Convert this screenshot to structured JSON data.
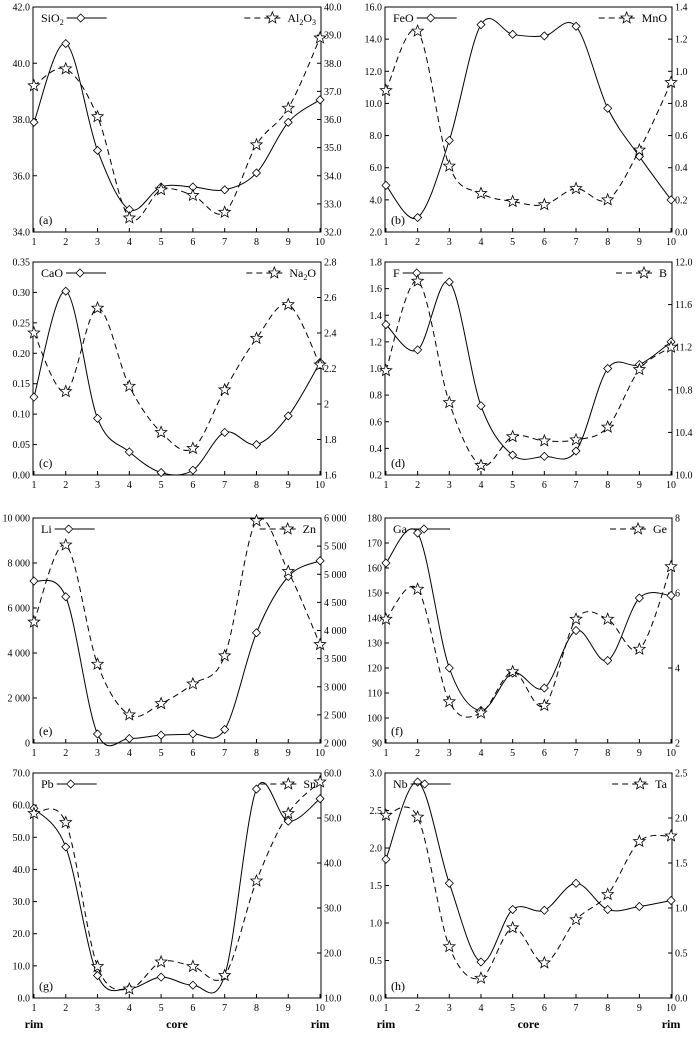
{
  "x_ticks": [
    "1",
    "2",
    "3",
    "4",
    "5",
    "6",
    "7",
    "8",
    "9",
    "10"
  ],
  "bottom_words": {
    "left": "rim",
    "center": "core",
    "right": "rim"
  },
  "chart_data": [
    {
      "type": "line",
      "panel_label": "(a)",
      "left_axis": {
        "ticks": [
          "34.0",
          "36.0",
          "38.0",
          "40.0",
          "42.0"
        ],
        "ylim": [
          34.0,
          42.0
        ]
      },
      "right_axis": {
        "ticks": [
          "32.0",
          "33.0",
          "34.0",
          "35.0",
          "36.0",
          "37.0",
          "38.0",
          "39.0",
          "40.0"
        ],
        "ylim": [
          32.0,
          40.0
        ]
      },
      "series": [
        {
          "name": "SiO2",
          "name_base": "SiO",
          "name_sub": "2",
          "axis": "left",
          "marker": "diamond",
          "style": "solid",
          "x": [
            1,
            2,
            3,
            4,
            5,
            6,
            7,
            8,
            9,
            10
          ],
          "values": [
            37.9,
            40.7,
            36.9,
            34.8,
            35.6,
            35.6,
            35.5,
            36.1,
            37.9,
            38.7
          ]
        },
        {
          "name": "Al2O3",
          "name_base": "Al",
          "name_sub": "2",
          "name_base2": "O",
          "name_sub2": "3",
          "axis": "right",
          "marker": "star",
          "style": "dashed",
          "x": [
            1,
            2,
            3,
            4,
            5,
            6,
            7,
            8,
            9,
            10
          ],
          "values": [
            37.2,
            37.8,
            36.1,
            32.5,
            33.5,
            33.3,
            32.7,
            35.1,
            36.4,
            38.9
          ]
        }
      ]
    },
    {
      "type": "line",
      "panel_label": "(b)",
      "left_axis": {
        "ticks": [
          "2.0",
          "4.0",
          "6.0",
          "8.0",
          "10.0",
          "12.0",
          "14.0",
          "16.0"
        ],
        "ylim": [
          2.0,
          16.0
        ]
      },
      "right_axis": {
        "ticks": [
          "0.0",
          "0.2",
          "0.4",
          "0.6",
          "0.8",
          "1.0",
          "1.2",
          "1.4"
        ],
        "ylim": [
          0.0,
          1.4
        ]
      },
      "series": [
        {
          "name": "FeO",
          "axis": "left",
          "marker": "diamond",
          "style": "solid",
          "x": [
            1,
            2,
            3,
            4,
            5,
            6,
            7,
            8,
            9,
            10
          ],
          "values": [
            4.9,
            2.9,
            7.7,
            14.9,
            14.3,
            14.2,
            14.8,
            9.7,
            6.7,
            4.0
          ]
        },
        {
          "name": "MnO",
          "axis": "right",
          "marker": "star",
          "style": "dashed",
          "x": [
            1,
            2,
            3,
            4,
            5,
            6,
            7,
            8,
            9,
            10
          ],
          "values": [
            0.88,
            1.25,
            0.41,
            0.24,
            0.19,
            0.17,
            0.27,
            0.2,
            0.51,
            0.93
          ]
        }
      ]
    },
    {
      "type": "line",
      "panel_label": "(c)",
      "left_axis": {
        "ticks": [
          "0.00",
          "0.05",
          "0.10",
          "0.15",
          "0.20",
          "0.25",
          "0.30",
          "0.35"
        ],
        "ylim": [
          0.0,
          0.35
        ]
      },
      "right_axis": {
        "ticks": [
          "1.6",
          "1.8",
          "2",
          "2.2",
          "2.4",
          "2.6",
          "2.8"
        ],
        "ylim": [
          1.6,
          2.8
        ]
      },
      "series": [
        {
          "name": "CaO",
          "axis": "left",
          "marker": "diamond",
          "style": "solid",
          "x": [
            1,
            2,
            3,
            4,
            5,
            6,
            7,
            8,
            9,
            10
          ],
          "values": [
            0.128,
            0.302,
            0.093,
            0.038,
            0.004,
            0.008,
            0.07,
            0.05,
            0.097,
            0.185
          ]
        },
        {
          "name": "Na2O",
          "name_base": "Na",
          "name_sub": "2",
          "name_base2": "O",
          "axis": "right",
          "marker": "star",
          "style": "dashed",
          "x": [
            1,
            2,
            3,
            4,
            5,
            6,
            7,
            8,
            9,
            10
          ],
          "values": [
            2.4,
            2.07,
            2.54,
            2.1,
            1.84,
            1.75,
            2.08,
            2.37,
            2.56,
            2.22
          ]
        }
      ]
    },
    {
      "type": "line",
      "panel_label": "(d)",
      "left_axis": {
        "ticks": [
          "0.2",
          "0.4",
          "0.6",
          "0.8",
          "1.0",
          "1.2",
          "1.4",
          "1.6",
          "1.8"
        ],
        "ylim": [
          0.2,
          1.8
        ]
      },
      "right_axis": {
        "ticks": [
          "10.0",
          "10.4",
          "10.8",
          "11.2",
          "11.6",
          "12.0"
        ],
        "ylim": [
          10.0,
          12.0
        ]
      },
      "series": [
        {
          "name": "F",
          "axis": "left",
          "marker": "diamond",
          "style": "solid",
          "x": [
            1,
            2,
            3,
            4,
            5,
            6,
            7,
            8,
            9,
            10
          ],
          "values": [
            1.33,
            1.14,
            1.65,
            0.72,
            0.35,
            0.34,
            0.38,
            1.0,
            1.03,
            1.2
          ]
        },
        {
          "name": "B",
          "axis": "right",
          "marker": "star",
          "style": "dashed",
          "x": [
            1,
            2,
            3,
            4,
            5,
            6,
            7,
            8,
            9,
            10
          ],
          "values": [
            10.98,
            11.82,
            10.68,
            10.09,
            10.36,
            10.32,
            10.33,
            10.45,
            10.99,
            11.2
          ]
        }
      ]
    },
    {
      "type": "line",
      "panel_label": "(e)",
      "left_axis": {
        "ticks": [
          "0",
          "2 000",
          "4 000",
          "6 000",
          "8 000",
          "10 000"
        ],
        "ylim": [
          0,
          10000
        ]
      },
      "right_axis": {
        "ticks": [
          "2 000",
          "2 500",
          "3 000",
          "3 500",
          "4 000",
          "4 500",
          "5 000",
          "5 500",
          "6 000"
        ],
        "ylim": [
          2000,
          6000
        ]
      },
      "series": [
        {
          "name": "Li",
          "axis": "left",
          "marker": "diamond",
          "style": "solid",
          "x": [
            1,
            2,
            3,
            4,
            5,
            6,
            7,
            8,
            9,
            10
          ],
          "values": [
            7200,
            6500,
            400,
            200,
            350,
            400,
            600,
            4900,
            7400,
            8100
          ]
        },
        {
          "name": "Zn",
          "axis": "right",
          "marker": "star",
          "style": "dashed",
          "x": [
            1,
            2,
            3,
            4,
            5,
            6,
            7,
            8,
            9,
            10
          ],
          "values": [
            4150,
            5520,
            3400,
            2500,
            2700,
            3050,
            3550,
            5950,
            5050,
            3750
          ]
        }
      ]
    },
    {
      "type": "line",
      "panel_label": "(f)",
      "left_axis": {
        "ticks": [
          "90",
          "100",
          "110",
          "120",
          "130",
          "140",
          "150",
          "160",
          "170",
          "180"
        ],
        "ylim": [
          90,
          180
        ]
      },
      "right_axis": {
        "ticks": [
          "2",
          "4",
          "6",
          "8"
        ],
        "ylim": [
          2,
          8
        ]
      },
      "series": [
        {
          "name": "Ga",
          "axis": "left",
          "marker": "diamond",
          "style": "solid",
          "x": [
            1,
            2,
            3,
            4,
            5,
            6,
            7,
            8,
            9,
            10
          ],
          "values": [
            162,
            174,
            120,
            103,
            118,
            112,
            135,
            123,
            148,
            149
          ]
        },
        {
          "name": "Ge",
          "axis": "right",
          "marker": "star",
          "style": "dashed",
          "x": [
            1,
            2,
            3,
            4,
            5,
            6,
            7,
            8,
            9,
            10
          ],
          "values": [
            5.3,
            6.1,
            3.1,
            2.8,
            3.9,
            3.0,
            5.3,
            5.3,
            4.5,
            6.7
          ]
        }
      ]
    },
    {
      "type": "line",
      "panel_label": "(g)",
      "left_axis": {
        "ticks": [
          "0.0",
          "10.0",
          "20.0",
          "30.0",
          "40.0",
          "50.0",
          "60.0",
          "70.0"
        ],
        "ylim": [
          0,
          70
        ]
      },
      "right_axis": {
        "ticks": [
          "10.0",
          "20.0",
          "30.0",
          "40.0",
          "50.0",
          "60.0"
        ],
        "ylim": [
          10,
          60
        ]
      },
      "series": [
        {
          "name": "Pb",
          "axis": "left",
          "marker": "diamond",
          "style": "solid",
          "x": [
            1,
            2,
            3,
            4,
            5,
            6,
            7,
            8,
            9,
            10
          ],
          "values": [
            59,
            47,
            7,
            3,
            6.5,
            4,
            7,
            65,
            55,
            62
          ]
        },
        {
          "name": "Sn",
          "axis": "right",
          "marker": "star",
          "style": "dashed",
          "x": [
            1,
            2,
            3,
            4,
            5,
            6,
            7,
            8,
            9,
            10
          ],
          "values": [
            51,
            49,
            17,
            12,
            18,
            17,
            15,
            36,
            51,
            58
          ]
        }
      ]
    },
    {
      "type": "line",
      "panel_label": "(h)",
      "left_axis": {
        "ticks": [
          "0.0",
          "0.5",
          "1.0",
          "1.5",
          "2.0",
          "2.5",
          "3.0"
        ],
        "ylim": [
          0,
          3.0
        ]
      },
      "right_axis": {
        "ticks": [
          "0.0",
          "0.5",
          "1.0",
          "1.5",
          "2.0",
          "2.5"
        ],
        "ylim": [
          0,
          2.5
        ]
      },
      "series": [
        {
          "name": "Nb",
          "axis": "left",
          "marker": "diamond",
          "style": "solid",
          "x": [
            1,
            2,
            3,
            4,
            5,
            6,
            7,
            8,
            9,
            10
          ],
          "values": [
            1.85,
            2.88,
            1.53,
            0.48,
            1.18,
            1.17,
            1.53,
            1.18,
            1.22,
            1.3
          ]
        },
        {
          "name": "Ta",
          "axis": "right",
          "marker": "star",
          "style": "dashed",
          "x": [
            1,
            2,
            3,
            4,
            5,
            6,
            7,
            8,
            9,
            10
          ],
          "values": [
            2.03,
            2.01,
            0.57,
            0.22,
            0.78,
            0.39,
            0.87,
            1.15,
            1.74,
            1.8
          ]
        }
      ]
    }
  ]
}
